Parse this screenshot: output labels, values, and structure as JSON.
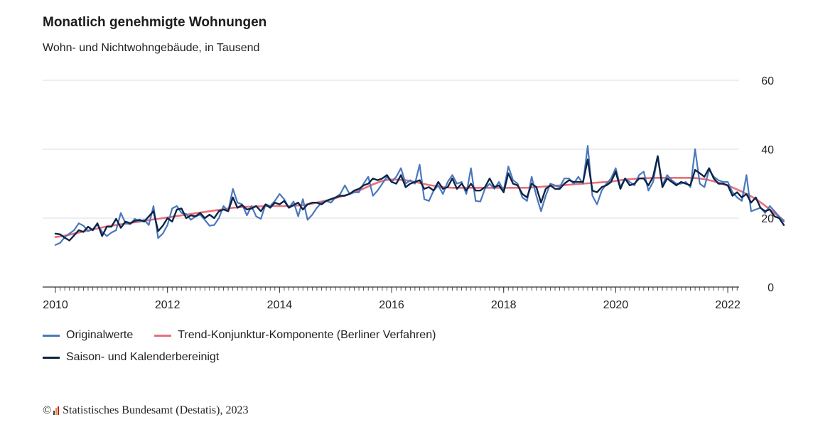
{
  "header": {
    "title": "Monatlich genehmigte Wohnungen",
    "subtitle": "Wohn- und Nichtwohngebäude, in Tausend"
  },
  "footer": {
    "copyright": "©",
    "source": "Statistisches Bundesamt (Destatis), 2023"
  },
  "colors": {
    "original": "#4a78bd",
    "trend": "#e8707a",
    "saison": "#0d2447",
    "grid": "#dcdcdc",
    "axis": "#333333"
  },
  "chart_data": {
    "type": "line",
    "title": "Monatlich genehmigte Wohnungen",
    "subtitle": "Wohn- und Nichtwohngebäude, in Tausend",
    "x_start": "2010-01",
    "x_end": "2023-07",
    "x_ticks": [
      "2010",
      "2012",
      "2014",
      "2016",
      "2018",
      "2020",
      "2022"
    ],
    "y_ticks": [
      "0",
      "20",
      "40",
      "60"
    ],
    "ylim": [
      0,
      60
    ],
    "y_axis_position": "right",
    "grid": true,
    "legend_position": "bottom-left",
    "series": [
      {
        "name": "Originalwerte",
        "color": "#4a78bd",
        "values": [
          12.2,
          12.8,
          14.5,
          15.5,
          16.5,
          18.5,
          17.8,
          16.2,
          16.8,
          18.2,
          16.0,
          14.8,
          15.8,
          16.5,
          21.5,
          18.5,
          18.2,
          19.8,
          19.0,
          19.5,
          18.0,
          23.5,
          14.2,
          15.5,
          18.0,
          22.8,
          23.5,
          21.5,
          21.2,
          19.5,
          20.5,
          21.0,
          19.5,
          17.8,
          18.0,
          20.0,
          23.5,
          22.0,
          28.5,
          24.5,
          24.0,
          20.8,
          23.5,
          20.5,
          19.8,
          24.0,
          23.5,
          25.0,
          27.0,
          25.5,
          23.0,
          24.8,
          20.5,
          25.5,
          19.5,
          21.0,
          23.0,
          24.5,
          25.0,
          24.5,
          26.0,
          27.0,
          29.5,
          27.0,
          27.5,
          27.5,
          30.0,
          32.0,
          26.5,
          28.0,
          30.0,
          32.0,
          30.5,
          32.0,
          34.5,
          30.0,
          31.0,
          30.0,
          35.5,
          25.5,
          25.0,
          28.0,
          29.5,
          27.0,
          30.5,
          32.5,
          30.0,
          30.5,
          27.0,
          34.5,
          25.0,
          24.8,
          28.5,
          30.0,
          28.5,
          30.5,
          28.0,
          35.0,
          31.0,
          30.0,
          26.0,
          25.0,
          32.0,
          26.5,
          22.0,
          26.5,
          30.0,
          29.5,
          29.0,
          31.5,
          31.5,
          30.0,
          32.0,
          30.0,
          41.0,
          26.5,
          24.0,
          28.0,
          30.0,
          31.5,
          34.5,
          29.0,
          31.5,
          30.5,
          29.5,
          32.5,
          33.5,
          28.0,
          30.5,
          38.0,
          29.5,
          32.5,
          31.0,
          30.0,
          30.0,
          30.5,
          29.0,
          40.0,
          30.0,
          29.0,
          34.0,
          32.0,
          31.0,
          30.5,
          30.5,
          27.5,
          26.0,
          25.0,
          32.5,
          22.0,
          22.5,
          23.0,
          21.5,
          23.5,
          22.0,
          20.5,
          19.0
        ]
      },
      {
        "name": "Trend-Konjunktur-Komponente (Berliner Verfahren)",
        "color": "#e8707a",
        "values": [
          14.5,
          14.7,
          14.9,
          15.2,
          15.5,
          15.8,
          16.1,
          16.4,
          16.7,
          17.0,
          17.3,
          17.6,
          17.8,
          18.0,
          18.2,
          18.4,
          18.6,
          18.8,
          19.0,
          19.2,
          19.4,
          19.6,
          19.8,
          20.0,
          20.2,
          20.4,
          20.6,
          20.8,
          21.0,
          21.2,
          21.4,
          21.6,
          21.8,
          22.0,
          22.2,
          22.4,
          22.6,
          22.8,
          23.0,
          23.1,
          23.2,
          23.3,
          23.3,
          23.4,
          23.4,
          23.5,
          23.5,
          23.5,
          23.5,
          23.5,
          23.5,
          23.6,
          23.7,
          23.8,
          24.0,
          24.2,
          24.5,
          24.8,
          25.1,
          25.4,
          25.8,
          26.2,
          26.6,
          27.0,
          27.5,
          28.0,
          28.6,
          29.2,
          29.8,
          30.3,
          30.8,
          31.1,
          31.2,
          31.2,
          31.1,
          31.0,
          30.8,
          30.5,
          30.2,
          29.9,
          29.6,
          29.4,
          29.2,
          29.0,
          28.9,
          28.8,
          28.8,
          28.8,
          28.8,
          28.8,
          28.8,
          28.8,
          28.8,
          28.8,
          28.8,
          28.8,
          28.8,
          28.8,
          28.8,
          28.8,
          28.8,
          28.8,
          28.9,
          29.0,
          29.1,
          29.2,
          29.3,
          29.4,
          29.5,
          29.6,
          29.7,
          29.8,
          29.9,
          30.0,
          30.1,
          30.2,
          30.3,
          30.4,
          30.5,
          30.6,
          30.8,
          31.0,
          31.2,
          31.3,
          31.4,
          31.5,
          31.6,
          31.6,
          31.7,
          31.7,
          31.7,
          31.7,
          31.7,
          31.7,
          31.7,
          31.7,
          31.7,
          31.6,
          31.5,
          31.3,
          31.0,
          30.7,
          30.3,
          29.9,
          29.4,
          28.9,
          28.3,
          27.7,
          27.0,
          26.3,
          25.5,
          24.6,
          23.6,
          22.5,
          21.4,
          20.4,
          19.4
        ]
      },
      {
        "name": "Saison- und Kalenderbereinigt",
        "color": "#0d2447",
        "values": [
          15.5,
          15.3,
          14.3,
          13.5,
          15.0,
          16.5,
          16.0,
          17.5,
          16.5,
          18.5,
          14.8,
          17.5,
          17.5,
          19.8,
          17.2,
          19.0,
          18.5,
          19.2,
          19.5,
          19.0,
          20.5,
          22.0,
          16.2,
          17.8,
          20.0,
          19.0,
          22.5,
          22.8,
          20.0,
          20.8,
          20.5,
          21.5,
          20.0,
          21.0,
          20.0,
          22.0,
          22.5,
          22.0,
          26.0,
          23.0,
          23.8,
          22.5,
          22.8,
          23.5,
          22.0,
          24.0,
          23.0,
          24.5,
          24.0,
          25.0,
          23.0,
          23.8,
          24.5,
          22.5,
          24.0,
          24.5,
          24.5,
          24.0,
          25.0,
          25.5,
          26.0,
          26.5,
          26.5,
          27.0,
          28.0,
          28.5,
          29.5,
          30.0,
          31.5,
          31.0,
          31.5,
          32.5,
          30.5,
          30.0,
          32.5,
          29.0,
          30.0,
          30.5,
          31.0,
          28.5,
          29.0,
          28.0,
          30.5,
          28.5,
          29.0,
          31.5,
          28.5,
          30.0,
          28.0,
          30.0,
          28.0,
          28.0,
          29.0,
          31.5,
          29.0,
          29.5,
          27.5,
          33.0,
          30.0,
          29.5,
          27.0,
          26.0,
          30.0,
          29.0,
          24.5,
          28.5,
          29.5,
          28.5,
          28.5,
          30.0,
          31.0,
          30.5,
          30.5,
          30.5,
          37.0,
          28.0,
          27.5,
          29.0,
          29.5,
          30.5,
          33.5,
          28.5,
          31.5,
          29.5,
          30.0,
          31.5,
          31.5,
          29.5,
          32.0,
          38.0,
          29.0,
          31.5,
          30.5,
          29.5,
          30.5,
          30.0,
          29.5,
          34.0,
          33.0,
          32.0,
          34.5,
          31.5,
          30.0,
          30.0,
          29.5,
          26.5,
          27.5,
          26.0,
          27.0,
          24.5,
          26.0,
          23.0,
          22.0,
          22.5,
          20.5,
          20.0,
          18.0
        ]
      }
    ]
  }
}
